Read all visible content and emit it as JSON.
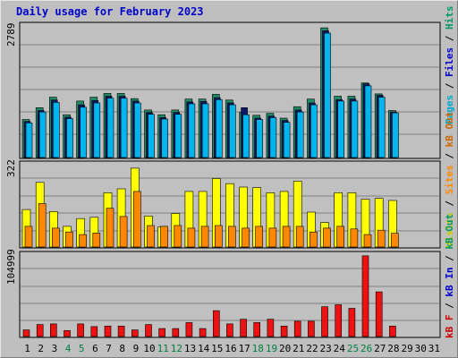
{
  "chart_data": {
    "type": "bar",
    "title": "Daily usage for February 2023",
    "x": {
      "days": [
        "1",
        "2",
        "3",
        "4",
        "5",
        "6",
        "7",
        "8",
        "9",
        "10",
        "11",
        "12",
        "13",
        "14",
        "15",
        "16",
        "17",
        "18",
        "19",
        "20",
        "21",
        "22",
        "23",
        "24",
        "25",
        "26",
        "27",
        "28",
        "29",
        "30",
        "31"
      ],
      "weekend_days": [
        "4",
        "5",
        "11",
        "12",
        "18",
        "19",
        "25",
        "26"
      ]
    },
    "panels": [
      {
        "name": "hits-files-pages",
        "ymax_label": "2789",
        "ymax": 2789,
        "right_label_parts": [
          {
            "text": "Pages",
            "color": "#00aacc"
          },
          {
            "text": " / ",
            "color": "#000000"
          },
          {
            "text": "Files",
            "color": "#0000cc"
          },
          {
            "text": " / ",
            "color": "#000000"
          },
          {
            "text": "Hits",
            "color": "#009966"
          }
        ],
        "series": [
          {
            "name": "Hits",
            "color": "#1f8a66",
            "values": [
              800,
              1050,
              1270,
              900,
              1190,
              1270,
              1350,
              1350,
              1240,
              1000,
              900,
              1000,
              1230,
              1230,
              1330,
              1210,
              950,
              890,
              930,
              830,
              1070,
              1230,
              2730,
              1290,
              1290,
              1570,
              1340,
              990,
              0,
              0,
              0
            ]
          },
          {
            "name": "Files",
            "color": "#0a1a66",
            "values": [
              760,
              990,
              1210,
              850,
              1110,
              1200,
              1290,
              1290,
              1190,
              950,
              840,
              950,
              1170,
              1180,
              1260,
              1150,
              1050,
              830,
              870,
              780,
              1000,
              1150,
              2670,
              1220,
              1230,
              1550,
              1310,
              960,
              0,
              0,
              0
            ]
          },
          {
            "name": "Pages",
            "color": "#00b4ee",
            "values": [
              730,
              960,
              1160,
              820,
              1060,
              1150,
              1250,
              1250,
              1150,
              910,
              810,
              910,
              1130,
              1130,
              1220,
              1110,
              900,
              800,
              840,
              740,
              960,
              1110,
              2620,
              1190,
              1190,
              1510,
              1270,
              940,
              0,
              0,
              0
            ]
          }
        ]
      },
      {
        "name": "visits-sites-kb-out",
        "ymax_label": "322",
        "ymax": 322,
        "right_label_parts": [
          {
            "text": "Visits",
            "color": "#cccc00"
          },
          {
            "text": " / ",
            "color": "#000000"
          },
          {
            "text": "Sites",
            "color": "#ff8800"
          },
          {
            "text": " / ",
            "color": "#000000"
          },
          {
            "text": "kB Out",
            "color": "#cc6600"
          }
        ],
        "series": [
          {
            "name": "Visits",
            "color": "#ffff00",
            "values": [
              145,
              250,
              137,
              80,
              110,
              115,
              210,
              225,
              305,
              120,
              78,
              130,
              215,
              215,
              265,
              245,
              232,
              230,
              210,
              215,
              255,
              135,
              95,
              210,
              210,
              185,
              188,
              180,
              0,
              0,
              0
            ]
          },
          {
            "name": "Sites",
            "color": "#ff8800",
            "values": [
              80,
              168,
              73,
              58,
              48,
              54,
              150,
              118,
              215,
              83,
              80,
              83,
              73,
              80,
              83,
              80,
              73,
              80,
              73,
              80,
              80,
              58,
              73,
              80,
              70,
              48,
              65,
              53,
              0,
              0,
              0
            ]
          }
        ]
      },
      {
        "name": "kb-f-kb-in-kb-out",
        "ymax_label": "104999",
        "ymax": 104999,
        "right_label_parts": [
          {
            "text": "kB F",
            "color": "#cc0000"
          },
          {
            "text": " / ",
            "color": "#000000"
          },
          {
            "text": "kB In",
            "color": "#0000cc"
          },
          {
            "text": " / ",
            "color": "#000000"
          },
          {
            "text": "kB Out",
            "color": "#009966"
          }
        ],
        "series": [
          {
            "name": "kB F",
            "color": "#ee1111",
            "values": [
              8500,
              15300,
              16100,
              7700,
              16100,
              12700,
              13400,
              13400,
              8500,
              15300,
              10200,
              10200,
              17800,
              10200,
              33000,
              16100,
              22000,
              17800,
              22000,
              13400,
              19500,
              19500,
              38000,
              40500,
              36000,
              103000,
              57000,
              13400,
              0,
              0,
              0
            ]
          }
        ]
      }
    ]
  },
  "colors": {
    "frame_bg": "#bfbfbf",
    "plot_bg": "#c0c0c0",
    "grid": "#808080",
    "title": "#0000cc",
    "weekday_label": "#000000",
    "weekend_label": "#008040"
  }
}
